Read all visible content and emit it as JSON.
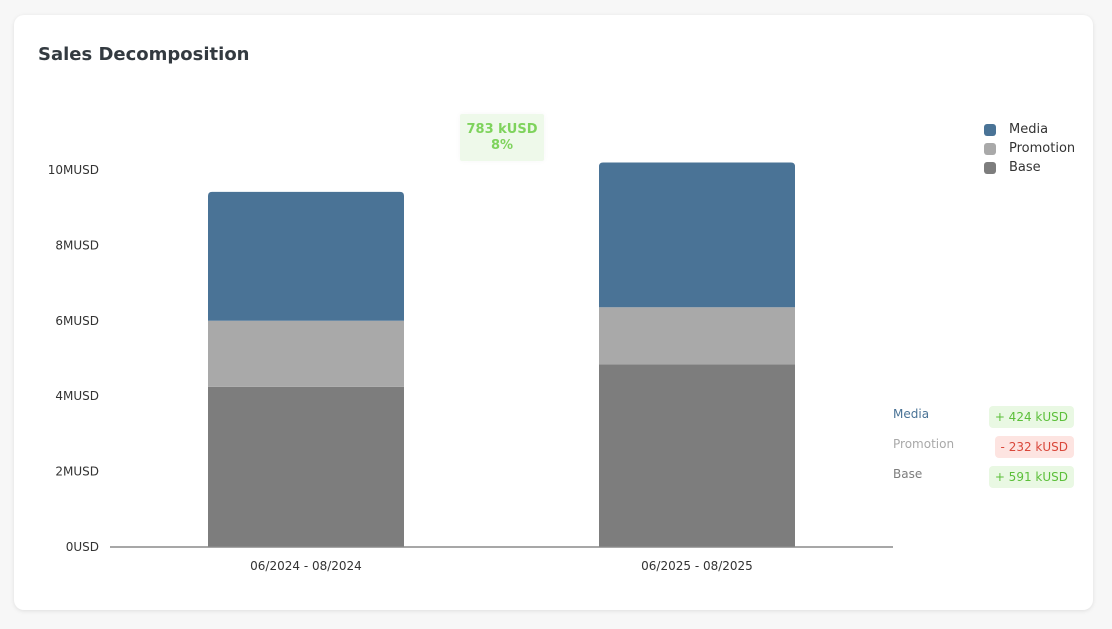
{
  "card": {
    "title": "Sales Decomposition"
  },
  "colors": {
    "Media": "#4a7396",
    "Promotion": "#a9a9a9",
    "Base": "#7d7d7d",
    "positive": "#5cbf3a",
    "negative": "#d9473a"
  },
  "chart_data": {
    "type": "bar",
    "stacked": true,
    "categories": [
      "06/2024 - 08/2024",
      "06/2025 - 08/2025"
    ],
    "series": [
      {
        "name": "Base",
        "values": [
          4.25,
          4.84
        ]
      },
      {
        "name": "Promotion",
        "values": [
          1.75,
          1.52
        ]
      },
      {
        "name": "Media",
        "values": [
          3.42,
          3.84
        ]
      }
    ],
    "y_ticks": [
      0,
      2,
      4,
      6,
      8,
      10
    ],
    "y_tick_labels": [
      "0USD",
      "2MUSD",
      "4MUSD",
      "6MUSD",
      "8MUSD",
      "10MUSD"
    ],
    "ylim": [
      0,
      10.5
    ],
    "grid": false,
    "legend": {
      "position": "top-right",
      "entries": [
        "Media",
        "Promotion",
        "Base"
      ]
    }
  },
  "total_change": {
    "value": "783 kUSD",
    "percent": "8%"
  },
  "breakdown": [
    {
      "label": "Media",
      "change": "+ 424 kUSD",
      "direction": "positive"
    },
    {
      "label": "Promotion",
      "change": "- 232 kUSD",
      "direction": "negative"
    },
    {
      "label": "Base",
      "change": "+ 591 kUSD",
      "direction": "positive"
    }
  ]
}
